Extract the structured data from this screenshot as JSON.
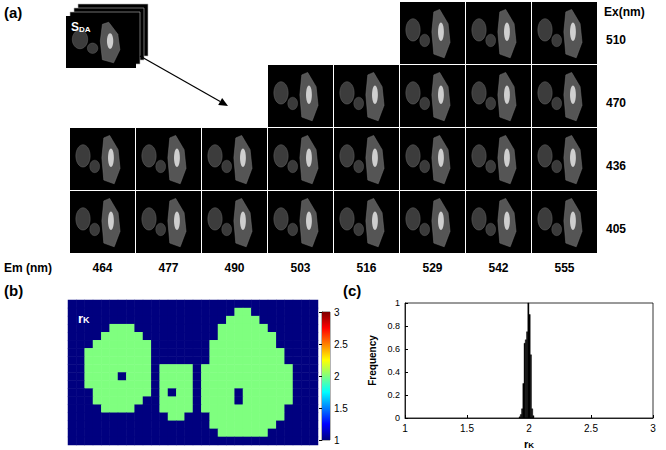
{
  "chart_data": [
    {
      "type": "image_grid",
      "panel": "(a)",
      "stack_label": {
        "main": "S",
        "sub": "DA"
      },
      "column_title": "Em (nm)",
      "row_title": "Ex(nm)",
      "columns": [
        464,
        477,
        490,
        503,
        516,
        529,
        542,
        555
      ],
      "rows": [
        {
          "ex": 510,
          "em": [
            529,
            542,
            555
          ]
        },
        {
          "ex": 470,
          "em": [
            503,
            516,
            529,
            542,
            555
          ]
        },
        {
          "ex": 436,
          "em": [
            464,
            477,
            490,
            503,
            516,
            529,
            542,
            555
          ]
        },
        {
          "ex": 405,
          "em": [
            464,
            477,
            490,
            503,
            516,
            529,
            542,
            555
          ]
        }
      ]
    },
    {
      "type": "heatmap",
      "panel": "(b)",
      "label": {
        "main": "r",
        "sub": "K"
      },
      "color_range": [
        1,
        3
      ],
      "color_ticks": [
        1,
        1.5,
        2,
        2.5,
        3
      ],
      "cells": [
        [
          1,
          1,
          1,
          1,
          1,
          1,
          1,
          1,
          1,
          1,
          1,
          1,
          1,
          1,
          1,
          1,
          1,
          1,
          1,
          1,
          1,
          1,
          1,
          1,
          1,
          1,
          1,
          1,
          1,
          1
        ],
        [
          1,
          1,
          1,
          1,
          1,
          1,
          1,
          1,
          1,
          1,
          1,
          1,
          1,
          1,
          1,
          1,
          1,
          1,
          1,
          1,
          2,
          2,
          1,
          1,
          1,
          1,
          1,
          1,
          1,
          1
        ],
        [
          1,
          1,
          1,
          1,
          1,
          1,
          1,
          1,
          1,
          1,
          1,
          1,
          1,
          1,
          1,
          1,
          1,
          1,
          1,
          2,
          2,
          2,
          2,
          1,
          1,
          1,
          1,
          1,
          1,
          1
        ],
        [
          1,
          1,
          1,
          1,
          1,
          2,
          2,
          2,
          1,
          1,
          1,
          1,
          1,
          1,
          1,
          1,
          1,
          1,
          2,
          2,
          2,
          2,
          2,
          2,
          1,
          1,
          1,
          1,
          1,
          1
        ],
        [
          1,
          1,
          1,
          1,
          2,
          2,
          2,
          2,
          2,
          1,
          1,
          1,
          1,
          1,
          1,
          1,
          1,
          1,
          2,
          2,
          2,
          2,
          2,
          2,
          2,
          1,
          1,
          1,
          1,
          1
        ],
        [
          1,
          1,
          1,
          2,
          2,
          2,
          2,
          2,
          2,
          2,
          1,
          1,
          1,
          1,
          1,
          1,
          1,
          2,
          2,
          2,
          2,
          2,
          2,
          2,
          2,
          1,
          1,
          1,
          1,
          1
        ],
        [
          1,
          1,
          2,
          2,
          2,
          2,
          2,
          2,
          2,
          2,
          1,
          1,
          1,
          1,
          1,
          1,
          1,
          2,
          2,
          2,
          2,
          2,
          2,
          2,
          2,
          2,
          1,
          1,
          1,
          1
        ],
        [
          1,
          1,
          2,
          2,
          2,
          2,
          2,
          2,
          2,
          2,
          1,
          1,
          1,
          1,
          1,
          1,
          1,
          2,
          2,
          2,
          2,
          2,
          2,
          2,
          2,
          2,
          1,
          1,
          1,
          1
        ],
        [
          1,
          1,
          2,
          2,
          2,
          2,
          2,
          2,
          2,
          2,
          1,
          2,
          2,
          2,
          2,
          1,
          2,
          2,
          2,
          2,
          2,
          2,
          2,
          2,
          2,
          2,
          2,
          1,
          1,
          1
        ],
        [
          1,
          1,
          2,
          2,
          2,
          2,
          1,
          2,
          2,
          2,
          1,
          2,
          2,
          2,
          2,
          1,
          2,
          2,
          2,
          2,
          2,
          2,
          2,
          2,
          2,
          2,
          2,
          1,
          1,
          1
        ],
        [
          1,
          1,
          2,
          2,
          2,
          2,
          2,
          2,
          2,
          2,
          1,
          2,
          2,
          2,
          2,
          1,
          2,
          2,
          2,
          2,
          2,
          2,
          2,
          2,
          2,
          2,
          2,
          1,
          1,
          1
        ],
        [
          1,
          1,
          1,
          2,
          2,
          2,
          2,
          2,
          2,
          2,
          1,
          2,
          1,
          2,
          2,
          1,
          2,
          2,
          2,
          2,
          1,
          2,
          2,
          2,
          2,
          2,
          2,
          1,
          1,
          1
        ],
        [
          1,
          1,
          1,
          2,
          2,
          2,
          2,
          2,
          2,
          1,
          1,
          2,
          2,
          2,
          2,
          1,
          2,
          2,
          2,
          2,
          1,
          2,
          2,
          2,
          2,
          2,
          2,
          1,
          1,
          1
        ],
        [
          1,
          1,
          1,
          1,
          2,
          2,
          2,
          2,
          1,
          1,
          1,
          2,
          2,
          2,
          2,
          1,
          2,
          2,
          2,
          2,
          2,
          2,
          2,
          2,
          2,
          2,
          1,
          1,
          1,
          1
        ],
        [
          1,
          1,
          1,
          1,
          1,
          1,
          1,
          1,
          1,
          1,
          1,
          1,
          2,
          2,
          1,
          1,
          1,
          2,
          2,
          2,
          2,
          2,
          2,
          2,
          2,
          2,
          1,
          1,
          1,
          1
        ],
        [
          1,
          1,
          1,
          1,
          1,
          1,
          1,
          1,
          1,
          1,
          1,
          1,
          1,
          1,
          1,
          1,
          1,
          2,
          2,
          2,
          2,
          2,
          2,
          2,
          2,
          1,
          1,
          1,
          1,
          1
        ],
        [
          1,
          1,
          1,
          1,
          1,
          1,
          1,
          1,
          1,
          1,
          1,
          1,
          1,
          1,
          1,
          1,
          1,
          1,
          2,
          2,
          2,
          2,
          2,
          2,
          1,
          1,
          1,
          1,
          1,
          1
        ],
        [
          1,
          1,
          1,
          1,
          1,
          1,
          1,
          1,
          1,
          1,
          1,
          1,
          1,
          1,
          1,
          1,
          1,
          1,
          1,
          1,
          1,
          1,
          1,
          1,
          1,
          1,
          1,
          1,
          1,
          1
        ]
      ]
    },
    {
      "type": "histogram",
      "panel": "(c)",
      "x_label": {
        "main": "r",
        "sub": "K"
      },
      "y_label": "Frequency",
      "bins": [
        1.92,
        1.93,
        1.94,
        1.95,
        1.96,
        1.97,
        1.98,
        1.99,
        2.0,
        2.01,
        2.02,
        2.03,
        2.04
      ],
      "counts": [
        0.01,
        0.03,
        0.08,
        0.3,
        0.65,
        0.68,
        0.75,
        1.0,
        0.9,
        0.55,
        0.08,
        0.02
      ],
      "color": "#000000",
      "xlim": [
        1,
        3
      ],
      "xticks": [
        1,
        1.5,
        2,
        2.5,
        3
      ],
      "ylim": [
        0,
        1
      ],
      "yticks": [
        0,
        0.2,
        0.4,
        0.6,
        0.8,
        1
      ]
    }
  ]
}
